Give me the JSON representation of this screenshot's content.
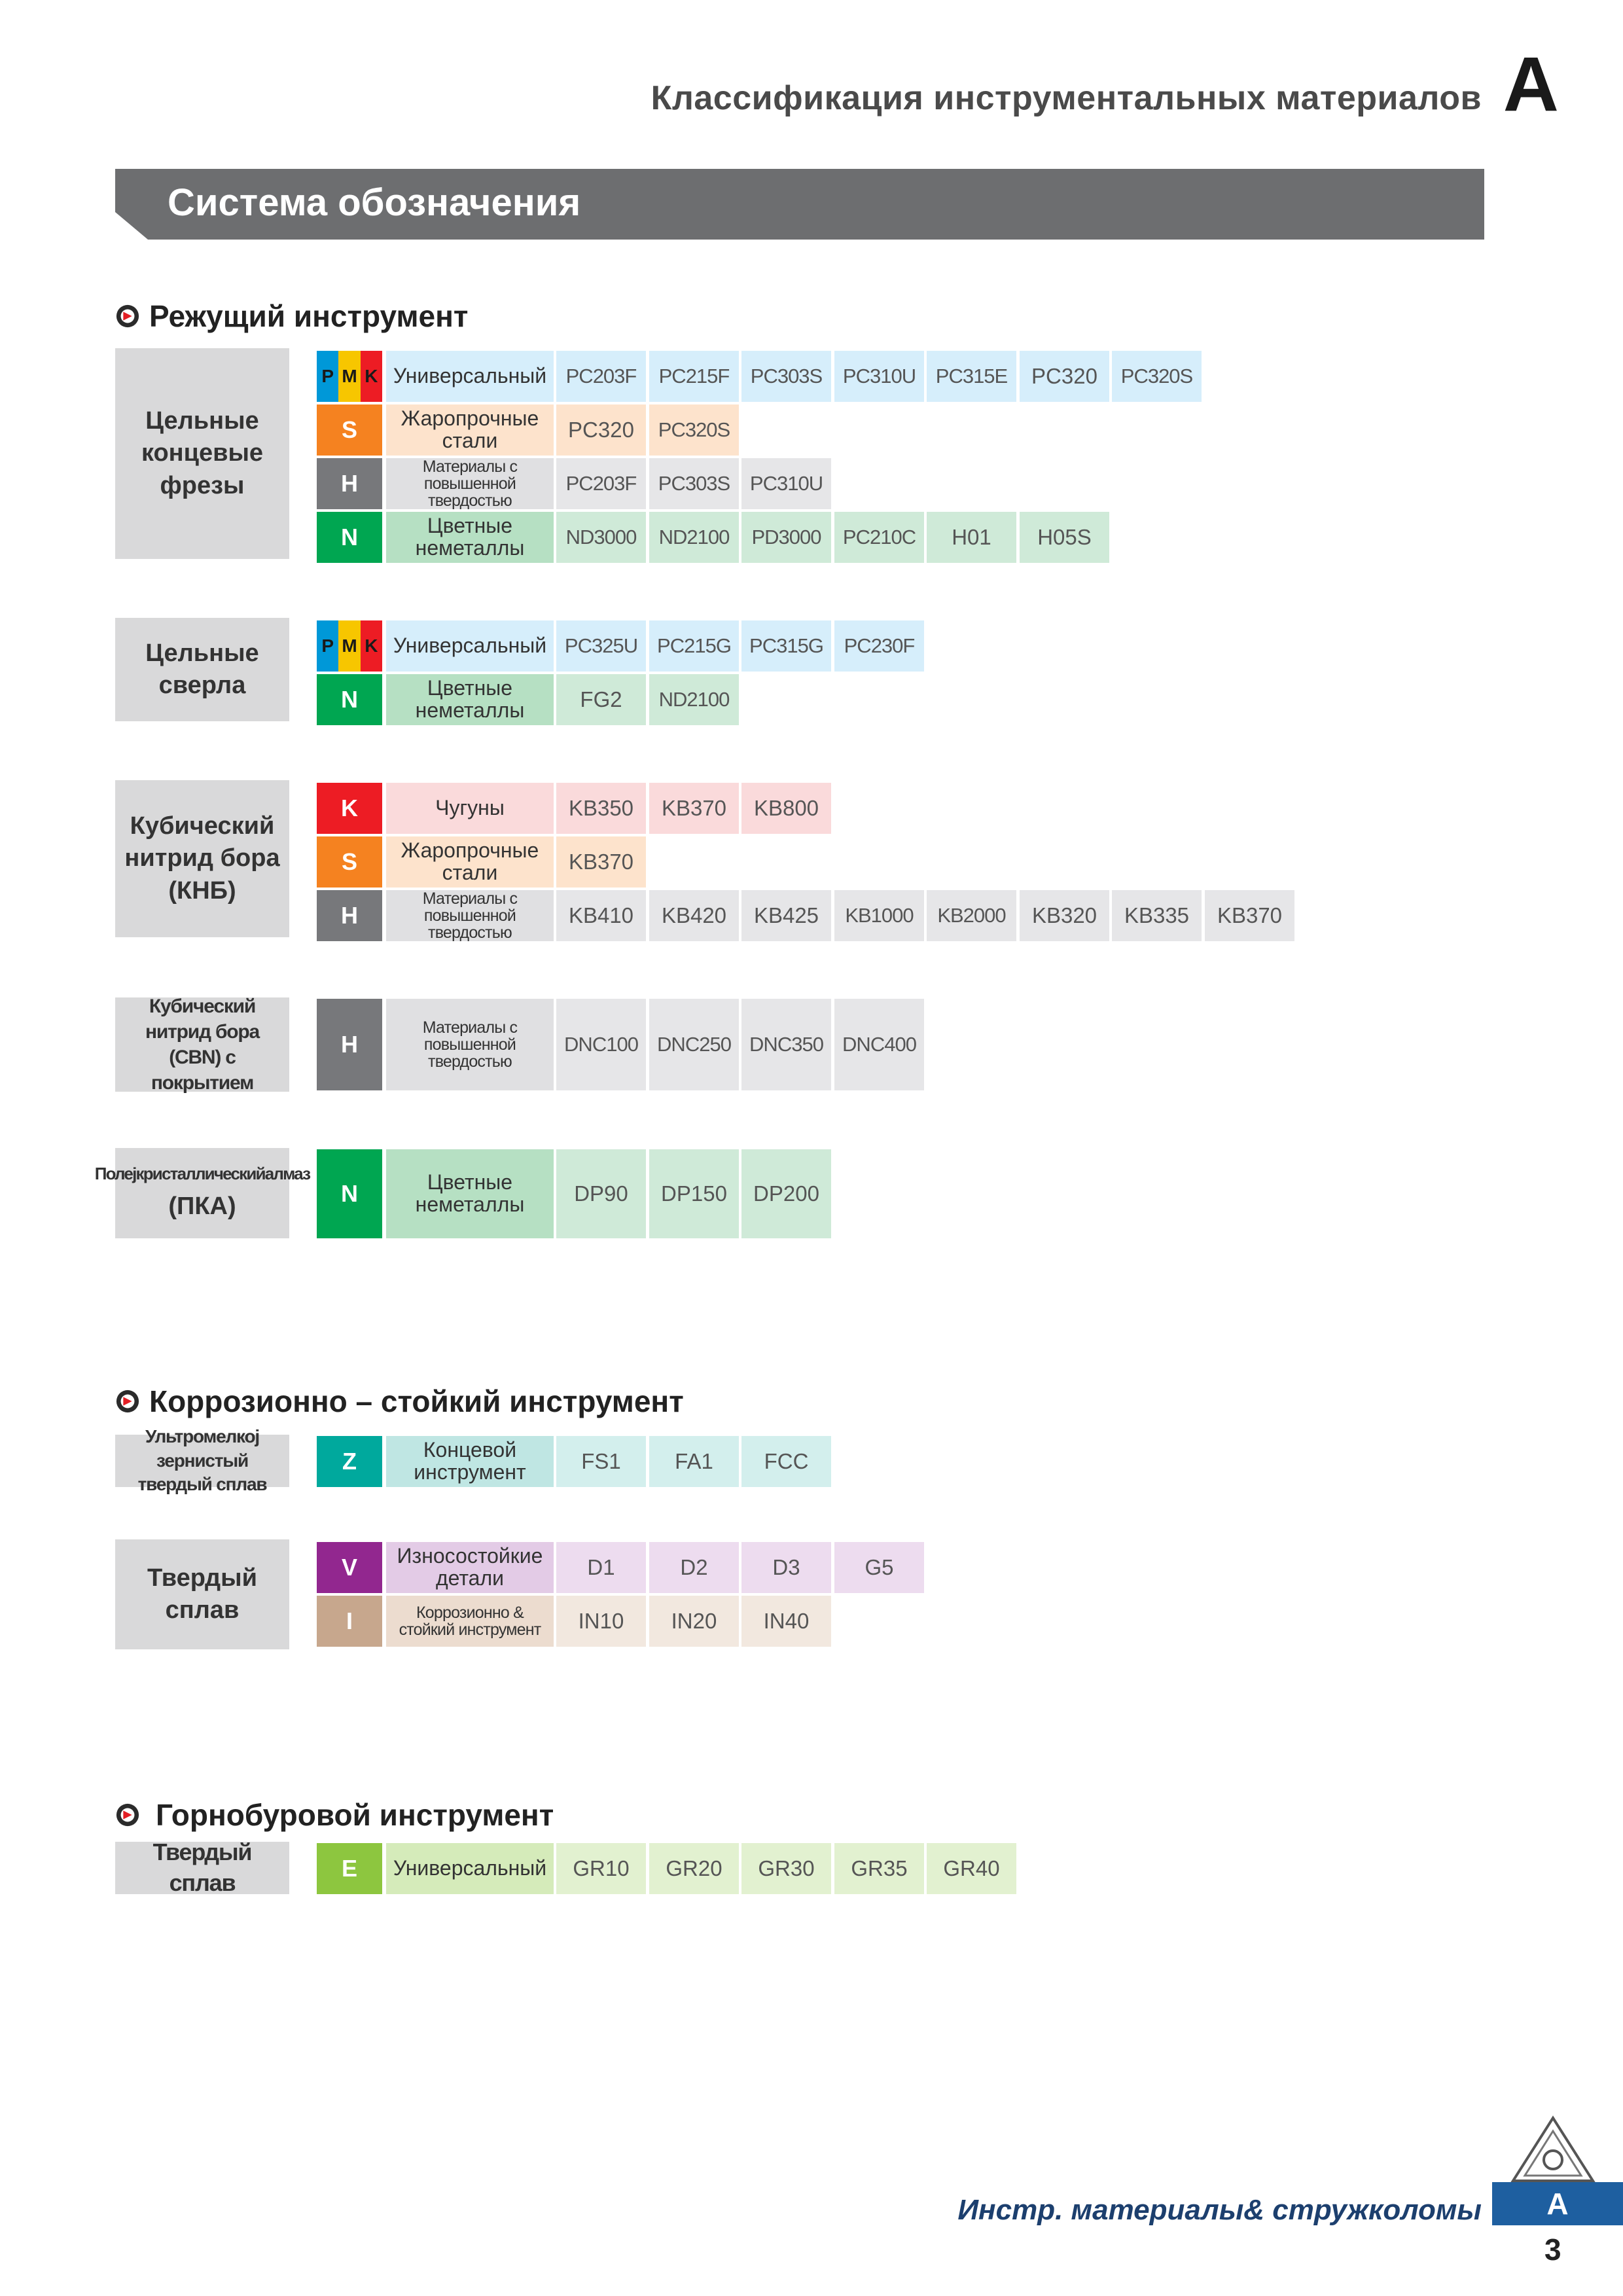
{
  "header": {
    "title": "Классификация инструментальных материалов",
    "letter": "A"
  },
  "banner": {
    "title": "Система обозначения"
  },
  "colors": {
    "universal_grade": "#d6eefb",
    "universal_desc": "#d6eefb",
    "S": "#f58220",
    "S_grade": "#fde3cc",
    "S_desc": "#fde3cc",
    "H": "#77787b",
    "H_grade": "#e6e6e8",
    "H_desc": "#e0e0e2",
    "N": "#00a651",
    "N_grade": "#cfead8",
    "N_desc": "#b6e0c3",
    "K": "#ed1c24",
    "K_grade": "#fadadb",
    "K_desc": "#fadadb",
    "Z": "#00a99d",
    "Z_grade": "#d3efed",
    "Z_desc": "#bfe6e3",
    "V": "#92278f",
    "V_grade": "#eddcef",
    "V_desc": "#e3cbe6",
    "I": "#c7a78d",
    "I_grade": "#f2e8df",
    "I_desc": "#ecdccf",
    "E": "#8dc63f",
    "E_grade": "#e2f1d0",
    "E_desc": "#d5ebba",
    "P": "#0098d8",
    "M": "#f7c600",
    "Kpmk": "#ed1c24",
    "group_bg": "#d9d9da"
  },
  "sections": [
    {
      "title": "Режущий инструмент"
    },
    {
      "title": "Коррозионно – стойкий инструмент"
    },
    {
      "title": "Горнобуровой инструмент"
    }
  ],
  "groups": [
    {
      "label": "Цельные концевые фрезы",
      "rows": [
        {
          "code": "PMK",
          "desc": "Универсальный",
          "grades": [
            "PC203F",
            "PC215F",
            "PC303S",
            "PC310U",
            "PC315E",
            "PC320",
            "PC320S"
          ]
        },
        {
          "code": "S",
          "desc": "Жаропрочные стали",
          "grades": [
            "PC320",
            "PC320S"
          ]
        },
        {
          "code": "H",
          "desc": "Материалы с повышенной твердостью",
          "grades": [
            "PC203F",
            "PC303S",
            "PC310U"
          ]
        },
        {
          "code": "N",
          "desc": "Цветные неметаллы",
          "grades": [
            "ND3000",
            "ND2100",
            "PD3000",
            "PC210C",
            "H01",
            "H05S"
          ]
        }
      ]
    },
    {
      "label": "Цельные сверла",
      "rows": [
        {
          "code": "PMK",
          "desc": "Универсальный",
          "grades": [
            "PC325U",
            "PC215G",
            "PC315G",
            "PC230F"
          ]
        },
        {
          "code": "N",
          "desc": "Цветные неметаллы",
          "grades": [
            "FG2",
            "ND2100"
          ]
        }
      ]
    },
    {
      "label": "Кубический нитрид бора (КНБ)",
      "rows": [
        {
          "code": "K",
          "desc": "Чугуны",
          "grades": [
            "KB350",
            "KB370",
            "KB800"
          ]
        },
        {
          "code": "S",
          "desc": "Жаропрочные стали",
          "grades": [
            "KB370"
          ]
        },
        {
          "code": "H",
          "desc": "Материалы с повышенной твердостью",
          "grades": [
            "KB410",
            "KB420",
            "KB425",
            "KB1000",
            "KB2000",
            "KB320",
            "KB335",
            "KB370"
          ]
        }
      ]
    },
    {
      "label": "Кубический нитрид бора (CBN) с покрытием",
      "rows": [
        {
          "code": "H",
          "desc": "Материалы с повышенной твердостью",
          "grades": [
            "DNC100",
            "DNC250",
            "DNC350",
            "DNC400"
          ]
        }
      ]
    },
    {
      "label": "Полеј кристаллическиј алмаз (ПКА)",
      "label_line1": "Полејкристаллическийалмаз",
      "label_line2": "(ПКА)",
      "rows": [
        {
          "code": "N",
          "desc": "Цветные неметаллы",
          "grades": [
            "DP90",
            "DP150",
            "DP200"
          ]
        }
      ]
    },
    {
      "label": "Ультромелкој зернистый твердый сплав",
      "rows": [
        {
          "code": "Z",
          "desc": "Концевой инструмент",
          "grades": [
            "FS1",
            "FA1",
            "FCC"
          ]
        }
      ]
    },
    {
      "label": "Твердый сплав",
      "rows": [
        {
          "code": "V",
          "desc": "Износостойкие детали",
          "grades": [
            "D1",
            "D2",
            "D3",
            "G5"
          ]
        },
        {
          "code": "I",
          "desc": "Коррозионно & стойкий инструмент",
          "grades": [
            "IN10",
            "IN20",
            "IN40"
          ]
        }
      ]
    },
    {
      "label": "Твердый сплав",
      "rows": [
        {
          "code": "E",
          "desc": "Универсальный",
          "grades": [
            "GR10",
            "GR20",
            "GR30",
            "GR35",
            "GR40"
          ]
        }
      ]
    }
  ],
  "footer": {
    "text": "Инстр. материалы& стружколомы",
    "tab_letter": "A",
    "page_number": "3",
    "logo_icon": "insert-triangle-logo-icon"
  }
}
